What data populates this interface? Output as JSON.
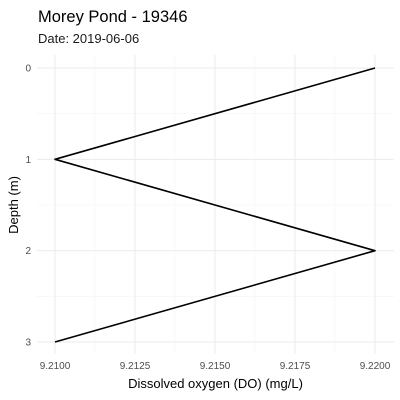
{
  "chart_data": {
    "type": "line",
    "title": "Morey Pond - 19346",
    "subtitle": "Date: 2019-06-06",
    "xlabel": "Dissolved oxygen (DO) (mg/L)",
    "ylabel": "Depth (m)",
    "xlim": [
      9.21,
      9.22
    ],
    "ylim": [
      0,
      3
    ],
    "y_reversed": true,
    "grid": true,
    "x_ticks": [
      {
        "value": 9.21,
        "label": "9.2100"
      },
      {
        "value": 9.2125,
        "label": "9.2125"
      },
      {
        "value": 9.215,
        "label": "9.2150"
      },
      {
        "value": 9.2175,
        "label": "9.2175"
      },
      {
        "value": 9.22,
        "label": "9.2200"
      }
    ],
    "y_ticks": [
      {
        "value": 0,
        "label": "0"
      },
      {
        "value": 1,
        "label": "1"
      },
      {
        "value": 2,
        "label": "2"
      },
      {
        "value": 3,
        "label": "3"
      }
    ],
    "series": [
      {
        "color": "#000000",
        "points": [
          {
            "x": 9.22,
            "y": 0
          },
          {
            "x": 9.21,
            "y": 1
          },
          {
            "x": 9.22,
            "y": 2
          },
          {
            "x": 9.21,
            "y": 3
          }
        ]
      }
    ]
  }
}
